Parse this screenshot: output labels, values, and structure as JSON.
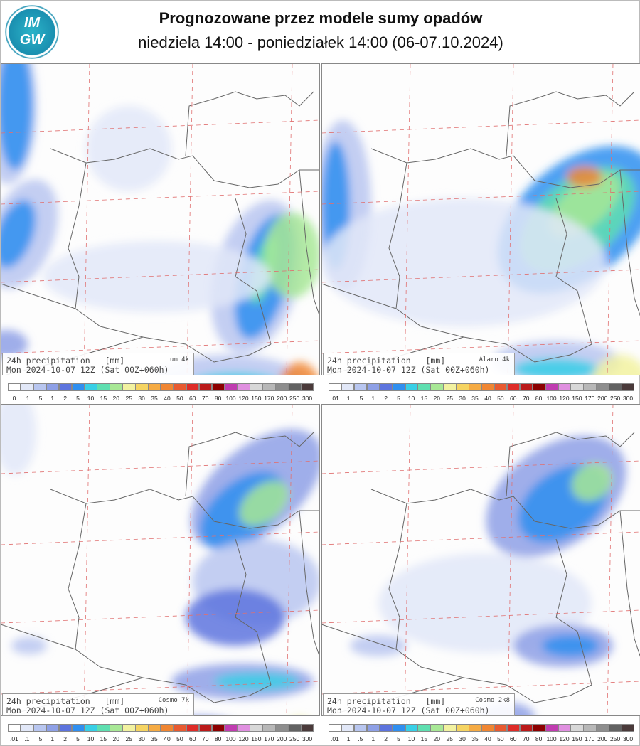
{
  "header": {
    "logo_lines": [
      "IM",
      "GW"
    ],
    "title": "Prognozowane przez modele sumy opadów",
    "subtitle": "niedziela 14:00 - poniedziałek 14:00 (06-07.10.2024)"
  },
  "legend_colors": [
    "#ffffff",
    "#e2e8f8",
    "#b8c6f0",
    "#8ea0e6",
    "#5d74de",
    "#2f8ff0",
    "#38cfe6",
    "#5fdfb0",
    "#a8e896",
    "#f2f2a0",
    "#f5d462",
    "#f5ab44",
    "#f08632",
    "#e85a30",
    "#de2c28",
    "#bb1a1a",
    "#8c0000",
    "#c03cb0",
    "#e090e0",
    "#d8d8d8",
    "#b8b8b8",
    "#8e8e8e",
    "#626262",
    "#4a3a3a"
  ],
  "panels": [
    {
      "caption": "24h precipitation   [mm]",
      "model": "um 4k",
      "run": "Mon 2024-10-07 12Z (Sat 00Z+060h)",
      "scale_labels": [
        "0",
        ".1",
        ".5",
        "1",
        "2",
        "5",
        "10",
        "15",
        "20",
        "25",
        "30",
        "35",
        "40",
        "50",
        "60",
        "70",
        "80",
        "100",
        "120",
        "150",
        "170",
        "200",
        "250",
        "300"
      ]
    },
    {
      "caption": "24h precipitation   [mm]",
      "model": "Alaro 4k",
      "run": "Mon 2024-10-07 12Z (Sat 00Z+060h)",
      "scale_labels": [
        ".01",
        ".1",
        ".5",
        "1",
        "2",
        "5",
        "10",
        "15",
        "20",
        "25",
        "30",
        "35",
        "40",
        "50",
        "60",
        "70",
        "80",
        "100",
        "120",
        "150",
        "170",
        "200",
        "250",
        "300"
      ]
    },
    {
      "caption": "24h precipitation   [mm]",
      "model": "Cosmo 7k",
      "run": "Mon 2024-10-07 12Z (Sat 00Z+060h)",
      "scale_labels": [
        ".01",
        ".1",
        ".5",
        "1",
        "2",
        "5",
        "10",
        "15",
        "20",
        "25",
        "30",
        "35",
        "40",
        "50",
        "60",
        "70",
        "80",
        "100",
        "120",
        "150",
        "170",
        "200",
        "250",
        "300"
      ]
    },
    {
      "caption": "24h precipitation   [mm]",
      "model": "Cosmo 2k8",
      "run": "Mon 2024-10-07 12Z (Sat 00Z+060h)",
      "scale_labels": [
        ".01",
        ".1",
        ".5",
        "1",
        "2",
        "5",
        "10",
        "15",
        "20",
        "25",
        "30",
        "35",
        "40",
        "50",
        "60",
        "70",
        "80",
        "100",
        "120",
        "150",
        "170",
        "200",
        "250",
        "300"
      ]
    }
  ]
}
